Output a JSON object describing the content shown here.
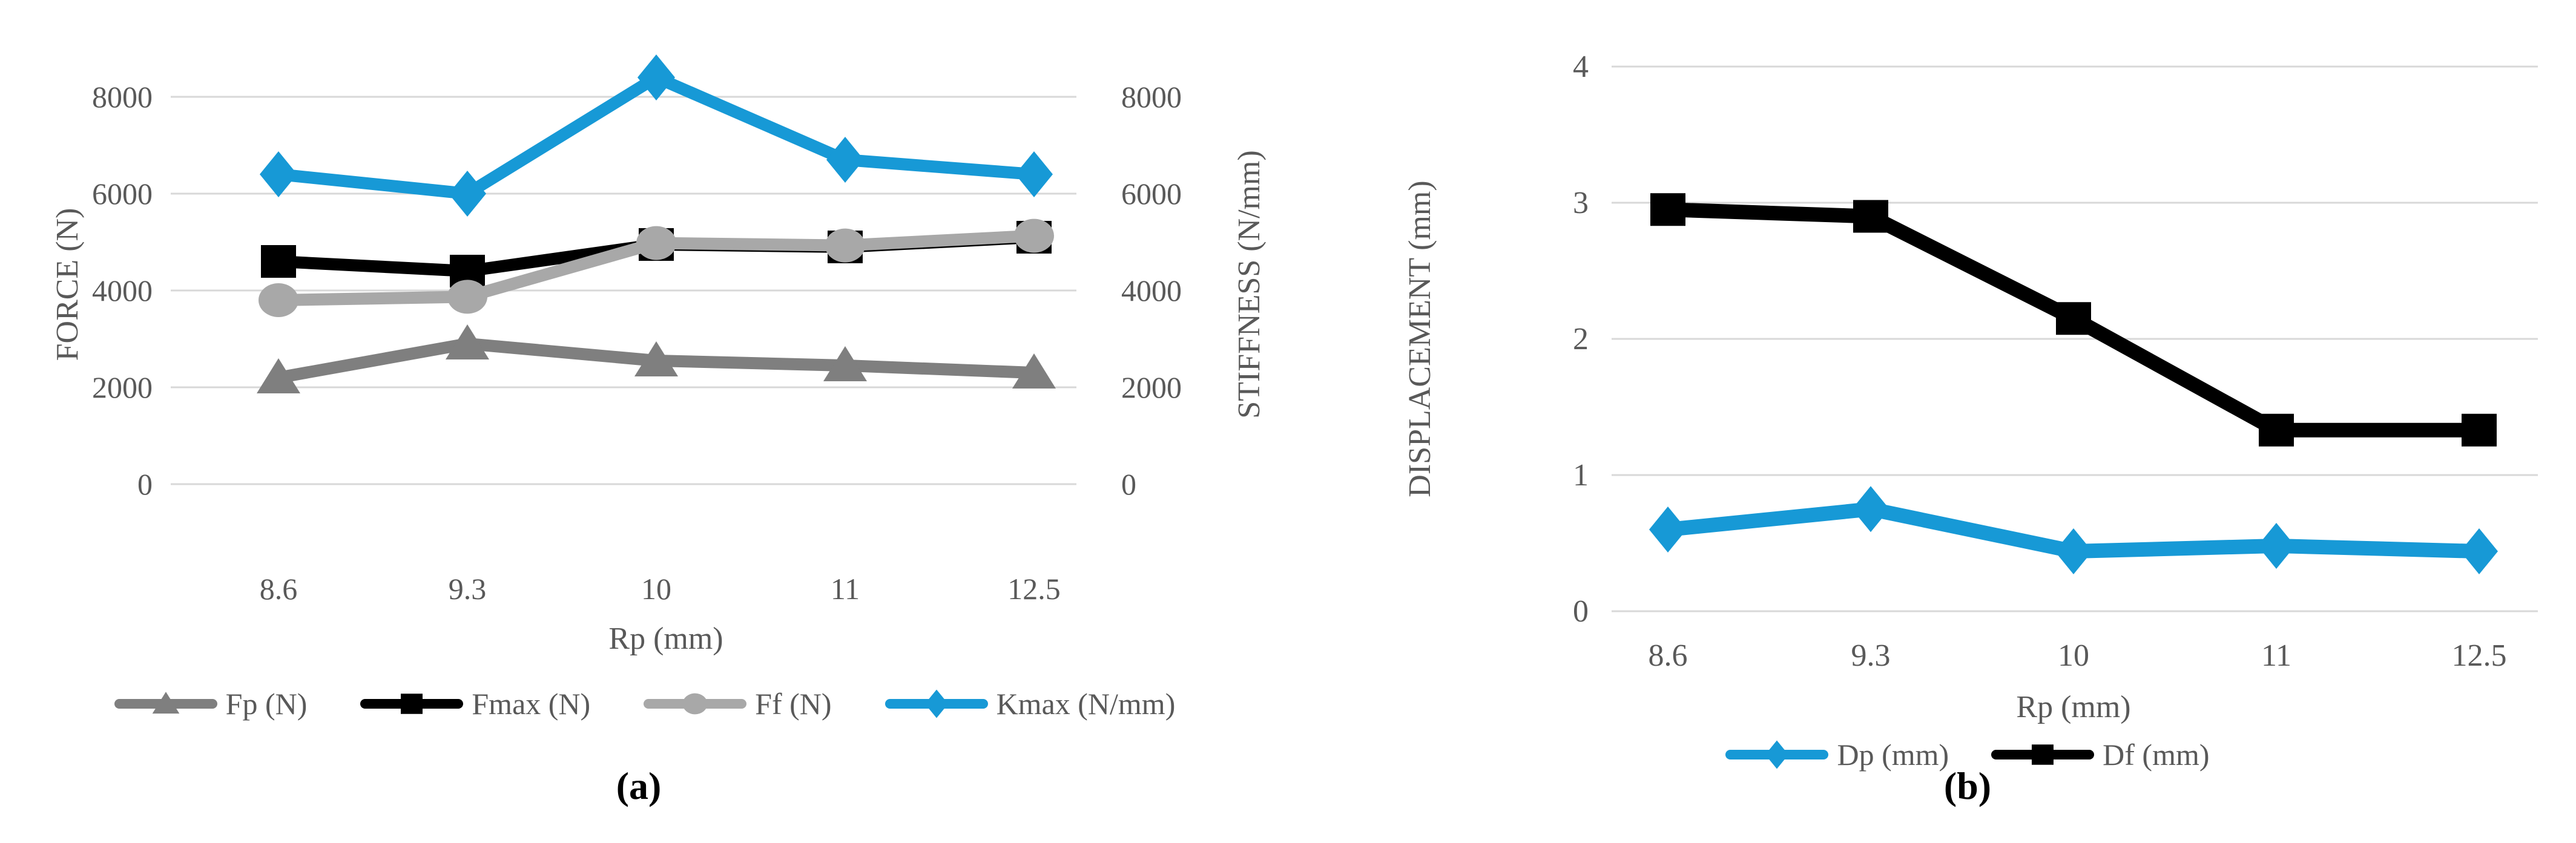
{
  "figure": {
    "background": "#ffffff",
    "text_color": "#595959",
    "grid_color": "#D8D8D8",
    "accent_blue": "#1799D6"
  },
  "chart_data": [
    {
      "type": "line",
      "caption": "(a)",
      "categories": [
        "8.6",
        "9.3",
        "10",
        "11",
        "12.5"
      ],
      "xlabel": "Rp (mm)",
      "ylabel_left": "FORCE (N)",
      "ylabel_right": "STIFFNESS (N/mm)",
      "ylim": [
        0,
        8000
      ],
      "yticks": [
        0,
        2000,
        4000,
        6000,
        8000
      ],
      "grid": true,
      "legend_position": "bottom",
      "series": [
        {
          "name": "Fp (N)",
          "axis": "left",
          "color": "#7F7F7F",
          "marker": "triangle",
          "values": [
            2200,
            2900,
            2550,
            2450,
            2300
          ]
        },
        {
          "name": "Fmax (N)",
          "axis": "left",
          "color": "#000000",
          "marker": "square",
          "values": [
            4600,
            4400,
            4950,
            4900,
            5100
          ]
        },
        {
          "name": "Ff (N)",
          "axis": "left",
          "color": "#A8A8A8",
          "marker": "circle",
          "values": [
            3800,
            3870,
            4980,
            4930,
            5130
          ]
        },
        {
          "name": "Kmax (N/mm)",
          "axis": "right",
          "color": "#1799D6",
          "marker": "diamond",
          "values": [
            6400,
            6000,
            8400,
            6700,
            6400
          ]
        }
      ]
    },
    {
      "type": "line",
      "caption": "(b)",
      "categories": [
        "8.6",
        "9.3",
        "10",
        "11",
        "12.5"
      ],
      "xlabel": "Rp (mm)",
      "ylabel_left": "DISPLACEMENT (mm)",
      "ylabel_right": "",
      "ylim": [
        0,
        4
      ],
      "yticks": [
        0,
        1,
        2,
        3,
        4
      ],
      "grid": true,
      "legend_position": "bottom",
      "series": [
        {
          "name": "Dp (mm)",
          "axis": "left",
          "color": "#1799D6",
          "marker": "diamond",
          "values": [
            0.6,
            0.75,
            0.44,
            0.48,
            0.44
          ]
        },
        {
          "name": "Df (mm)",
          "axis": "left",
          "color": "#000000",
          "marker": "square",
          "values": [
            2.95,
            2.9,
            2.15,
            1.33,
            1.33
          ]
        }
      ]
    }
  ]
}
